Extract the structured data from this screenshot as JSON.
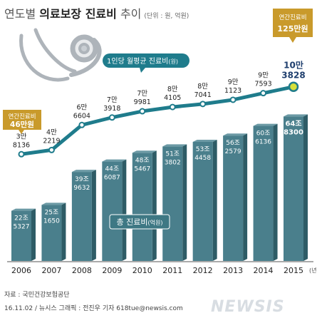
{
  "header": {
    "title_part1": "연도별 ",
    "title_part2": "의료보장 진료비",
    "title_part3": " 추이",
    "unit": "(단위 : 원, 억원)"
  },
  "footer": {
    "source": "자료 : 국민건강보험공단",
    "credit": "16.11.02 / 뉴시스 그래픽 : 전진우 기자 618tue@newsis.com",
    "logo": "NEWSIS"
  },
  "callouts": {
    "annual_2006_line1": "연간진료비",
    "annual_2006_line2": "46만원",
    "annual_2015_line1": "연간진료비",
    "annual_2015_line2": "125만원",
    "line_label": "1인당 월평균 진료비",
    "line_label_unit": "(원)",
    "bar_label": "총 진료비",
    "bar_label_unit": "(억원)",
    "year_unit": "(년)"
  },
  "colors": {
    "line": "#1f7c8c",
    "marker_edge": "#1f7c8c",
    "marker_highlight": "#d6e03a",
    "bar_front": "#4a7f8c",
    "bar_side": "#2e5c66",
    "bar_top": "#6c9aa5",
    "gold": "#c99a2b",
    "label_dark": "#1f3f6e"
  },
  "chart_data": {
    "type": "bar",
    "categories": [
      "2006",
      "2007",
      "2008",
      "2009",
      "2010",
      "2011",
      "2012",
      "2013",
      "2014",
      "2015"
    ],
    "bar_series": {
      "name": "총 진료비",
      "unit": "억원",
      "values": [
        225327,
        251650,
        399632,
        446087,
        485467,
        513802,
        534458,
        562579,
        606136,
        648300
      ],
      "labels": [
        [
          "22조",
          "5327"
        ],
        [
          "25조",
          "1650"
        ],
        [
          "39조",
          "9632"
        ],
        [
          "44조",
          "6087"
        ],
        [
          "48조",
          "5467"
        ],
        [
          "51조",
          "3802"
        ],
        [
          "53조",
          "4458"
        ],
        [
          "56조",
          "2579"
        ],
        [
          "60조",
          "6136"
        ],
        [
          "64조",
          "8300"
        ]
      ]
    },
    "line_series": {
      "name": "1인당 월평균 진료비",
      "unit": "원",
      "values": [
        38136,
        42219,
        66604,
        73918,
        79981,
        84105,
        87041,
        91123,
        97593,
        103828
      ],
      "labels": [
        [
          "3만",
          "8136"
        ],
        [
          "4만",
          "2219"
        ],
        [
          "6만",
          "6604"
        ],
        [
          "7만",
          "3918"
        ],
        [
          "7만",
          "9981"
        ],
        [
          "8만",
          "4105"
        ],
        [
          "8만",
          "7041"
        ],
        [
          "9만",
          "1123"
        ],
        [
          "9만",
          "7593"
        ],
        [
          "10만",
          "3828"
        ]
      ]
    },
    "bar_ylim": [
      0,
      800000
    ],
    "line_ylim": [
      30000,
      105000
    ]
  }
}
